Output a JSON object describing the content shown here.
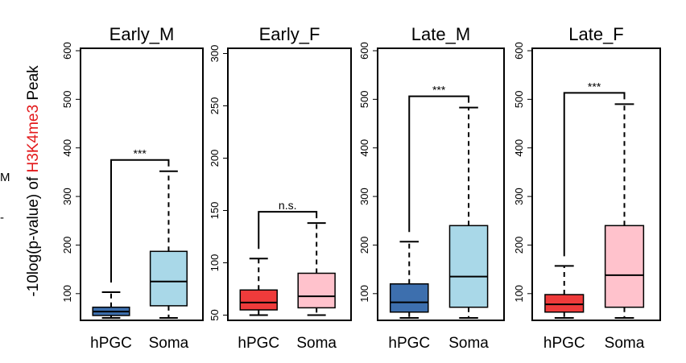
{
  "y_axis_label": {
    "prefix": "-10log(p-value) of ",
    "highlight": "H3K4me3",
    "suffix": " Peak",
    "highlight_color": "#e31a1c"
  },
  "edge_text": [
    "M",
    "‑"
  ],
  "chart_data": [
    {
      "type": "box",
      "title": "Early_M",
      "categories": [
        "hPGC",
        "Soma"
      ],
      "yticks": [
        100,
        200,
        300,
        400,
        500,
        600
      ],
      "ylim": [
        45,
        605
      ],
      "boxes": [
        {
          "name": "hPGC",
          "color": "#3d6fae",
          "whisker_low": 50,
          "q1": 55,
          "median": 63,
          "q3": 72,
          "whisker_high": 103
        },
        {
          "name": "Soma",
          "color": "#a9d8e8",
          "whisker_low": 50,
          "q1": 75,
          "median": 125,
          "q3": 187,
          "whisker_high": 352
        }
      ],
      "significance": "***"
    },
    {
      "type": "box",
      "title": "Early_F",
      "categories": [
        "hPGC",
        "Soma"
      ],
      "yticks": [
        50,
        100,
        150,
        200,
        250,
        300
      ],
      "ylim": [
        45,
        305
      ],
      "boxes": [
        {
          "name": "hPGC",
          "color": "#ef3b3b",
          "whisker_low": 50,
          "q1": 55,
          "median": 62,
          "q3": 74,
          "whisker_high": 104
        },
        {
          "name": "Soma",
          "color": "#ffc2cc",
          "whisker_low": 50,
          "q1": 57,
          "median": 68,
          "q3": 90,
          "whisker_high": 138
        }
      ],
      "significance": "n.s."
    },
    {
      "type": "box",
      "title": "Late_M",
      "categories": [
        "hPGC",
        "Soma"
      ],
      "yticks": [
        100,
        200,
        300,
        400,
        500,
        600
      ],
      "ylim": [
        45,
        605
      ],
      "boxes": [
        {
          "name": "hPGC",
          "color": "#3d6fae",
          "whisker_low": 50,
          "q1": 62,
          "median": 82,
          "q3": 120,
          "whisker_high": 207
        },
        {
          "name": "Soma",
          "color": "#a9d8e8",
          "whisker_low": 50,
          "q1": 72,
          "median": 135,
          "q3": 240,
          "whisker_high": 483
        }
      ],
      "significance": "***"
    },
    {
      "type": "box",
      "title": "Late_F",
      "categories": [
        "hPGC",
        "Soma"
      ],
      "yticks": [
        100,
        200,
        300,
        400,
        500,
        600
      ],
      "ylim": [
        45,
        605
      ],
      "boxes": [
        {
          "name": "hPGC",
          "color": "#ef3b3b",
          "whisker_low": 50,
          "q1": 62,
          "median": 78,
          "q3": 98,
          "whisker_high": 157
        },
        {
          "name": "Soma",
          "color": "#ffc2cc",
          "whisker_low": 50,
          "q1": 72,
          "median": 138,
          "q3": 240,
          "whisker_high": 490
        }
      ],
      "significance": "***"
    }
  ]
}
